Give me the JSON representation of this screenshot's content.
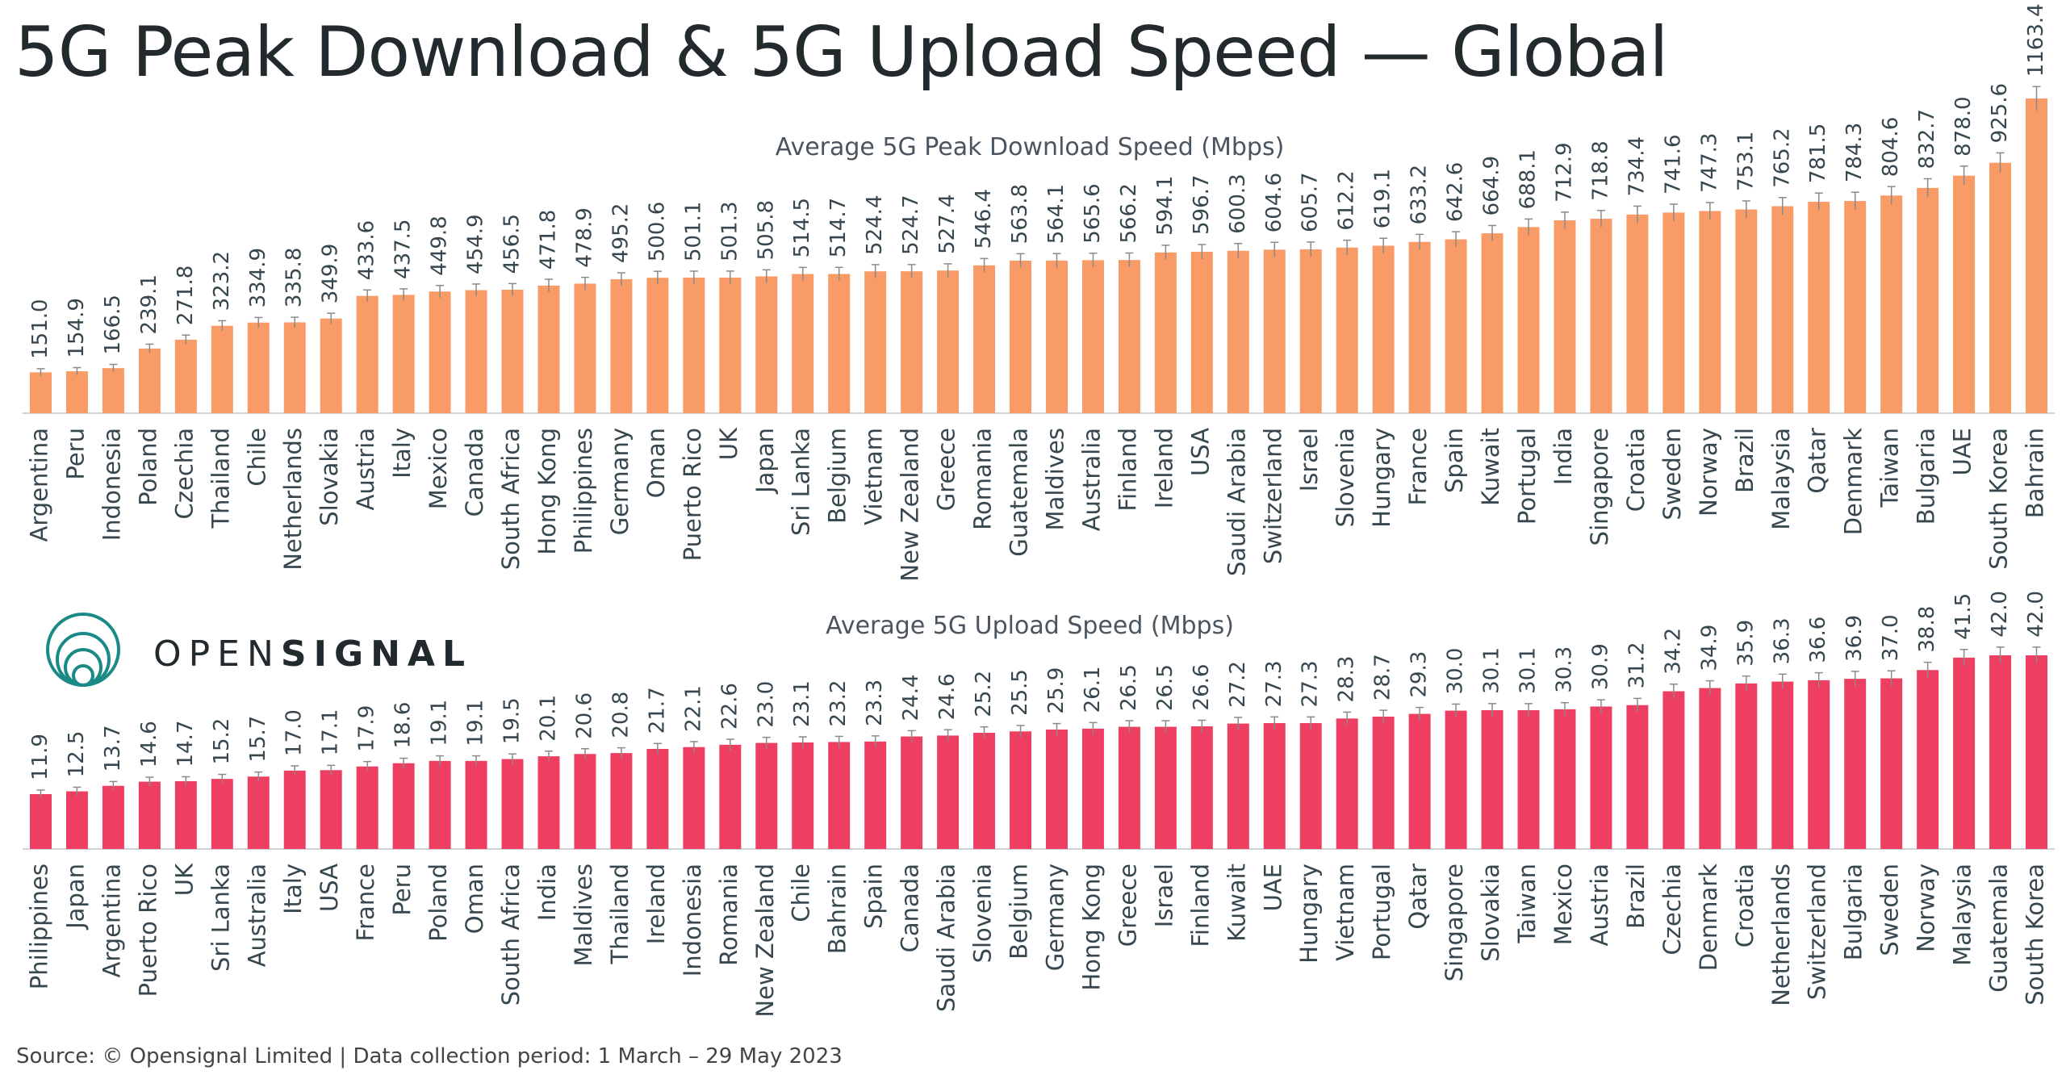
{
  "title": "5G Peak Download & 5G Upload Speed — Global",
  "logo": {
    "part1": "OPEN",
    "part2": "SIGNAL",
    "icon": "opensignal-rings-icon"
  },
  "footer": "Source:  © Opensignal Limited  |  Data collection period: 1 March – 29 May 2023",
  "colors": {
    "download": "#F99B66",
    "upload": "#EE3F62",
    "text": "#37474F",
    "error_bar": "#8a8a8a"
  },
  "chart_data": [
    {
      "type": "bar",
      "title": "Average 5G Peak Download Speed (Mbps)",
      "categories": [
        "Argentina",
        "Peru",
        "Indonesia",
        "Poland",
        "Czechia",
        "Thailand",
        "Chile",
        "Netherlands",
        "Slovakia",
        "Austria",
        "Italy",
        "Mexico",
        "Canada",
        "South Africa",
        "Hong Kong",
        "Philippines",
        "Germany",
        "Oman",
        "Puerto Rico",
        "UK",
        "Japan",
        "Sri Lanka",
        "Belgium",
        "Vietnam",
        "New Zealand",
        "Greece",
        "Romania",
        "Guatemala",
        "Maldives",
        "Australia",
        "Finland",
        "Ireland",
        "USA",
        "Saudi Arabia",
        "Switzerland",
        "Israel",
        "Slovenia",
        "Hungary",
        "France",
        "Spain",
        "Kuwait",
        "Portugal",
        "India",
        "Singapore",
        "Croatia",
        "Sweden",
        "Norway",
        "Brazil",
        "Malaysia",
        "Qatar",
        "Denmark",
        "Taiwan",
        "Bulgaria",
        "UAE",
        "South Korea",
        "Bahrain"
      ],
      "values": [
        151.0,
        154.9,
        166.5,
        239.1,
        271.8,
        323.2,
        334.9,
        335.8,
        349.9,
        433.6,
        437.5,
        449.8,
        454.9,
        456.5,
        471.8,
        478.9,
        495.2,
        500.6,
        501.1,
        501.3,
        505.8,
        514.5,
        514.7,
        524.4,
        524.7,
        527.4,
        546.4,
        563.8,
        564.1,
        565.6,
        566.2,
        594.1,
        596.7,
        600.3,
        604.6,
        605.7,
        612.2,
        619.1,
        633.2,
        642.6,
        664.9,
        688.1,
        712.9,
        718.8,
        734.4,
        741.6,
        747.3,
        753.1,
        765.2,
        781.5,
        784.3,
        804.6,
        832.7,
        878.0,
        925.6,
        1163.4
      ],
      "labels": [
        "151.0",
        "154.9",
        "166.5",
        "239.1",
        "271.8",
        "323.2",
        "334.9",
        "335.8",
        "349.9",
        "433.6",
        "437.5",
        "449.8",
        "454.9",
        "456.5",
        "471.8",
        "478.9",
        "495.2",
        "500.6",
        "501.1",
        "501.3",
        "505.8",
        "514.5",
        "514.7",
        "524.4",
        "524.7",
        "527.4",
        "546.4",
        "563.8",
        "564.1",
        "565.6",
        "566.2",
        "594.1",
        "596.7",
        "600.3",
        "604.6",
        "605.7",
        "612.2",
        "619.1",
        "633.2",
        "642.6",
        "664.9",
        "688.1",
        "712.9",
        "718.8",
        "734.4",
        "741.6",
        "747.3",
        "753.1",
        "765.2",
        "781.5",
        "784.3",
        "804.6",
        "832.7",
        "878.0",
        "925.6",
        "1163.4"
      ],
      "ylim": [
        0,
        1163.4
      ],
      "grid": false
    },
    {
      "type": "bar",
      "title": "Average 5G Upload Speed (Mbps)",
      "categories": [
        "Philippines",
        "Japan",
        "Argentina",
        "Puerto Rico",
        "UK",
        "Sri Lanka",
        "Australia",
        "Italy",
        "USA",
        "France",
        "Peru",
        "Poland",
        "Oman",
        "South Africa",
        "India",
        "Maldives",
        "Thailand",
        "Ireland",
        "Indonesia",
        "Romania",
        "New Zealand",
        "Chile",
        "Bahrain",
        "Spain",
        "Canada",
        "Saudi Arabia",
        "Slovenia",
        "Belgium",
        "Germany",
        "Hong Kong",
        "Greece",
        "Israel",
        "Finland",
        "Kuwait",
        "UAE",
        "Hungary",
        "Vietnam",
        "Portugal",
        "Qatar",
        "Singapore",
        "Slovakia",
        "Taiwan",
        "Mexico",
        "Austria",
        "Brazil",
        "Czechia",
        "Denmark",
        "Croatia",
        "Netherlands",
        "Switzerland",
        "Bulgaria",
        "Sweden",
        "Norway",
        "Malaysia",
        "Guatemala",
        "South Korea"
      ],
      "values": [
        11.9,
        12.5,
        13.7,
        14.6,
        14.7,
        15.2,
        15.7,
        17.0,
        17.1,
        17.9,
        18.6,
        19.1,
        19.1,
        19.5,
        20.1,
        20.6,
        20.8,
        21.7,
        22.1,
        22.6,
        23.0,
        23.1,
        23.2,
        23.3,
        24.4,
        24.6,
        25.2,
        25.5,
        25.9,
        26.1,
        26.5,
        26.5,
        26.6,
        27.2,
        27.3,
        27.3,
        28.3,
        28.7,
        29.3,
        30.0,
        30.1,
        30.1,
        30.3,
        30.9,
        31.2,
        34.2,
        34.9,
        35.9,
        36.3,
        36.6,
        36.9,
        37.0,
        38.8,
        41.5,
        42.0,
        42.0
      ],
      "labels": [
        "11.9",
        "12.5",
        "13.7",
        "14.6",
        "14.7",
        "15.2",
        "15.7",
        "17.0",
        "17.1",
        "17.9",
        "18.6",
        "19.1",
        "19.1",
        "19.5",
        "20.1",
        "20.6",
        "20.8",
        "21.7",
        "22.1",
        "22.6",
        "23.0",
        "23.1",
        "23.2",
        "23.3",
        "24.4",
        "24.6",
        "25.2",
        "25.5",
        "25.9",
        "26.1",
        "26.5",
        "26.5",
        "26.6",
        "27.2",
        "27.3",
        "27.3",
        "28.3",
        "28.7",
        "29.3",
        "30.0",
        "30.1",
        "30.1",
        "30.3",
        "30.9",
        "31.2",
        "34.2",
        "34.9",
        "35.9",
        "36.3",
        "36.6",
        "36.9",
        "37.0",
        "38.8",
        "41.5",
        "42.0",
        "42.0"
      ],
      "ylim": [
        0,
        42.0
      ],
      "grid": false
    }
  ]
}
